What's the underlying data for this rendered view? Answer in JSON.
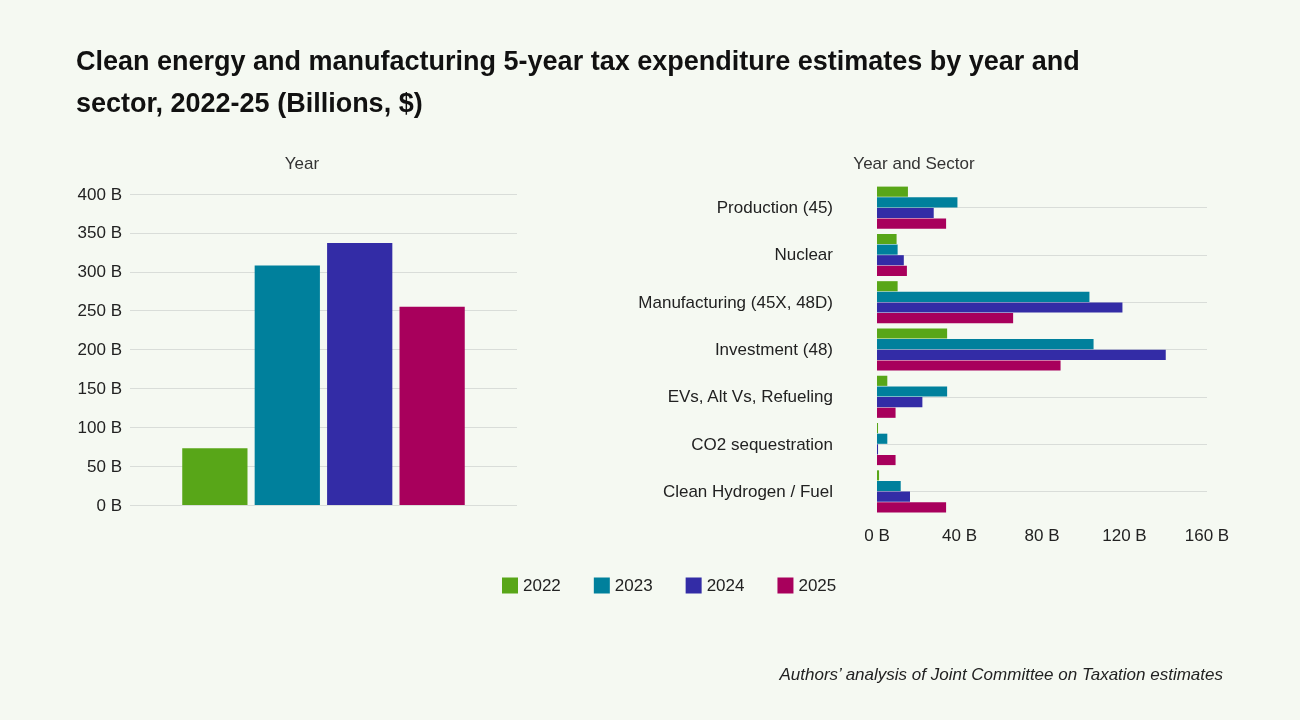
{
  "chart_data": [
    {
      "type": "bar",
      "title": "Clean energy and manufacturing 5-year tax expenditure estimates by year and sector, 2022-25 (Billions, $)",
      "subtitle": "Year",
      "categories": [
        null
      ],
      "series": [
        {
          "color": "#58a618",
          "values": [
            73
          ]
        },
        {
          "color": "#00809c",
          "values": [
            308
          ]
        },
        {
          "color": "#332ca6",
          "values": [
            337
          ]
        },
        {
          "color": "#a8005c",
          "values": [
            255
          ]
        }
      ],
      "ylim": [
        0,
        400
      ],
      "yticks": [
        {
          "value": 0,
          "label": "0 B"
        },
        {
          "value": 50,
          "label": "50 B"
        },
        {
          "value": 100,
          "label": "100 B"
        },
        {
          "value": 150,
          "label": "150 B"
        },
        {
          "value": 200,
          "label": "200 B"
        },
        {
          "value": 250,
          "label": "250 B"
        },
        {
          "value": 300,
          "label": "300 B"
        },
        {
          "value": 350,
          "label": "350 B"
        },
        {
          "value": 400,
          "label": "400 B"
        }
      ],
      "grid": "y"
    },
    {
      "type": "bar",
      "orientation": "horizontal",
      "title": "Year and Sector",
      "categories": [
        "Production (45)",
        "Nuclear",
        "Manufacturing (45X, 48D)",
        "Investment (48)",
        "EVs, Alt Vs, Refueling",
        "CO2 sequestration",
        "Clean Hydrogen / Fuel"
      ],
      "series": [
        {
          "name": "2022",
          "color": "#58a618",
          "values": [
            15,
            9.5,
            10,
            34,
            5,
            0.5,
            1
          ]
        },
        {
          "name": "2023",
          "color": "#00809c",
          "values": [
            39,
            10,
            103,
            105,
            34,
            5,
            11.5
          ]
        },
        {
          "name": "2024",
          "color": "#332ca6",
          "values": [
            27.5,
            13,
            119,
            140,
            22,
            0.5,
            16
          ]
        },
        {
          "name": "2025",
          "color": "#a8005c",
          "values": [
            33.5,
            14.5,
            66,
            89,
            9,
            9,
            33.5
          ]
        }
      ],
      "xlim": [
        0,
        160
      ],
      "xticks": [
        {
          "value": 0,
          "label": "0 B"
        },
        {
          "value": 40,
          "label": "40 B"
        },
        {
          "value": 80,
          "label": "80 B"
        },
        {
          "value": 120,
          "label": "120 B"
        },
        {
          "value": 160,
          "label": "160 B"
        }
      ],
      "grid": "y",
      "legend": "bottom",
      "annotations": [
        "Authors’ analysis of Joint Committee on Taxation estimates"
      ]
    }
  ]
}
